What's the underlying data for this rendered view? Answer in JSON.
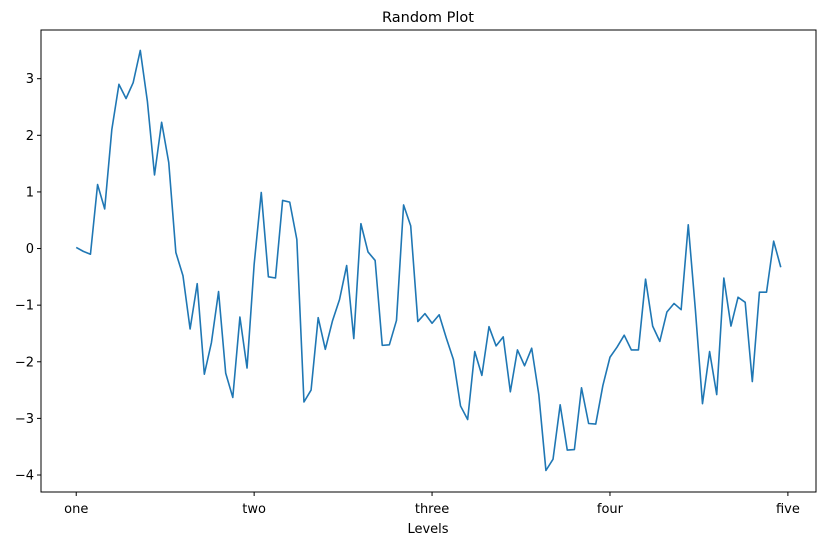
{
  "chart_data": {
    "type": "line",
    "title": "Random Plot",
    "xlabel": "Levels",
    "ylabel": "",
    "x_range": [
      0,
      99
    ],
    "xlim": [
      -4.95,
      103.95
    ],
    "ylim": [
      -4.3,
      3.86
    ],
    "x_ticks": [
      {
        "pos": 0,
        "label": "one"
      },
      {
        "pos": 25,
        "label": "two"
      },
      {
        "pos": 50,
        "label": "three"
      },
      {
        "pos": 75,
        "label": "four"
      },
      {
        "pos": 100,
        "label": "five"
      }
    ],
    "y_ticks": [
      -4,
      -3,
      -2,
      -1,
      0,
      1,
      2,
      3
    ],
    "grid": false,
    "series": [
      {
        "color": "#1f77b4",
        "values": [
          0.02,
          -0.05,
          -0.1,
          1.13,
          0.7,
          2.1,
          2.9,
          2.65,
          2.93,
          3.5,
          2.6,
          1.3,
          2.23,
          1.52,
          -0.07,
          -0.48,
          -1.42,
          -0.62,
          -2.22,
          -1.66,
          -0.76,
          -2.2,
          -2.63,
          -1.21,
          -2.11,
          -0.28,
          0.99,
          -0.5,
          -0.52,
          0.85,
          0.82,
          0.16,
          -2.71,
          -2.5,
          -1.22,
          -1.78,
          -1.28,
          -0.9,
          -0.3,
          -1.59,
          0.44,
          -0.06,
          -0.21,
          -1.71,
          -1.7,
          -1.27,
          0.77,
          0.4,
          -1.29,
          -1.15,
          -1.32,
          -1.17,
          -1.58,
          -1.96,
          -2.78,
          -3.02,
          -1.82,
          -2.24,
          -1.38,
          -1.72,
          -1.56,
          -2.53,
          -1.79,
          -2.07,
          -1.76,
          -2.58,
          -3.92,
          -3.72,
          -2.76,
          -3.56,
          -3.55,
          -2.46,
          -3.09,
          -3.1,
          -2.42,
          -1.92,
          -1.74,
          -1.53,
          -1.79,
          -1.79,
          -0.54,
          -1.37,
          -1.64,
          -1.12,
          -0.97,
          -1.08,
          0.42,
          -1.08,
          -2.74,
          -1.82,
          -2.58,
          -0.52,
          -1.37,
          -0.86,
          -0.95,
          -2.35,
          -0.77,
          -0.77,
          0.13,
          -0.33
        ]
      }
    ]
  }
}
